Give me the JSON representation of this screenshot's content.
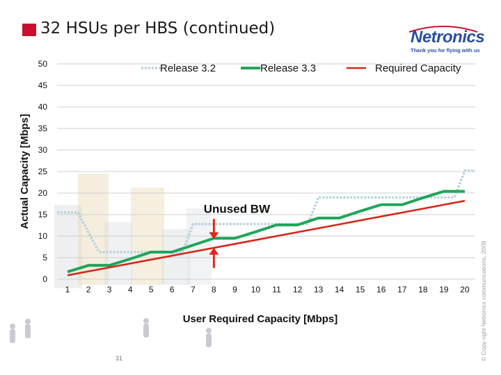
{
  "slide": {
    "title": "32 HSUs per HBS (continued)",
    "logo_name": "Netronics",
    "logo_tagline": "Thank you for flying with us",
    "copyright": "© Copy right Netronics communications, 2009",
    "page_number": "31",
    "colors": {
      "title_bullet": "#c8102e",
      "brand": "#2a4fa0"
    }
  },
  "chart_data": {
    "type": "line",
    "xlabel": "User Required Capacity [Mbps]",
    "ylabel": "Actual Capacity [Mbps]",
    "xlim": [
      0.5,
      20.5
    ],
    "ylim": [
      0,
      50
    ],
    "yticks": [
      0,
      5,
      10,
      15,
      20,
      25,
      30,
      35,
      40,
      45,
      50
    ],
    "xticks": [
      1,
      2,
      3,
      4,
      5,
      6,
      7,
      8,
      9,
      10,
      11,
      12,
      13,
      14,
      15,
      16,
      17,
      18,
      19,
      20
    ],
    "grid": {
      "horizontal": true,
      "vertical": false
    },
    "legend": "top",
    "series": [
      {
        "name": "Release 3.2",
        "style": "dotted",
        "color": "#b9d3dc",
        "x": [
          0.5,
          1.5,
          2.5,
          3.5,
          4.5,
          5.5,
          6.5,
          7.0,
          9.0,
          12.5,
          13.0,
          17.5,
          19.5,
          20.0,
          20.5
        ],
        "y": [
          15.5,
          15.5,
          6.3,
          6.3,
          6.3,
          6.3,
          6.3,
          12.8,
          12.8,
          12.8,
          19.0,
          19.0,
          19.0,
          25.2,
          25.2
        ]
      },
      {
        "name": "Release 3.3",
        "style": "solid",
        "color": "#20a55a",
        "x": [
          1,
          2,
          3,
          4,
          5,
          6,
          7,
          8,
          9,
          10,
          11,
          12,
          13,
          14,
          15,
          16,
          17,
          18,
          19,
          20
        ],
        "y": [
          1.7,
          3.2,
          3.2,
          4.7,
          6.3,
          6.3,
          7.9,
          9.5,
          9.5,
          11.0,
          12.6,
          12.6,
          14.2,
          14.2,
          15.8,
          17.3,
          17.3,
          18.9,
          20.4,
          20.4
        ]
      },
      {
        "name": "Required Capacity",
        "style": "solid",
        "color": "#d62718",
        "x": [
          1,
          20
        ],
        "y": [
          0.9,
          18.2
        ]
      }
    ],
    "annotations": [
      {
        "text": "Unused BW",
        "x": 9.1,
        "y": 16.4
      }
    ],
    "arrows": [
      {
        "x": 8,
        "from": 14.0,
        "to": 9.3,
        "color": "#e0281e"
      },
      {
        "x": 8,
        "from": 2.6,
        "to": 7.3,
        "color": "#e0281e"
      }
    ]
  }
}
